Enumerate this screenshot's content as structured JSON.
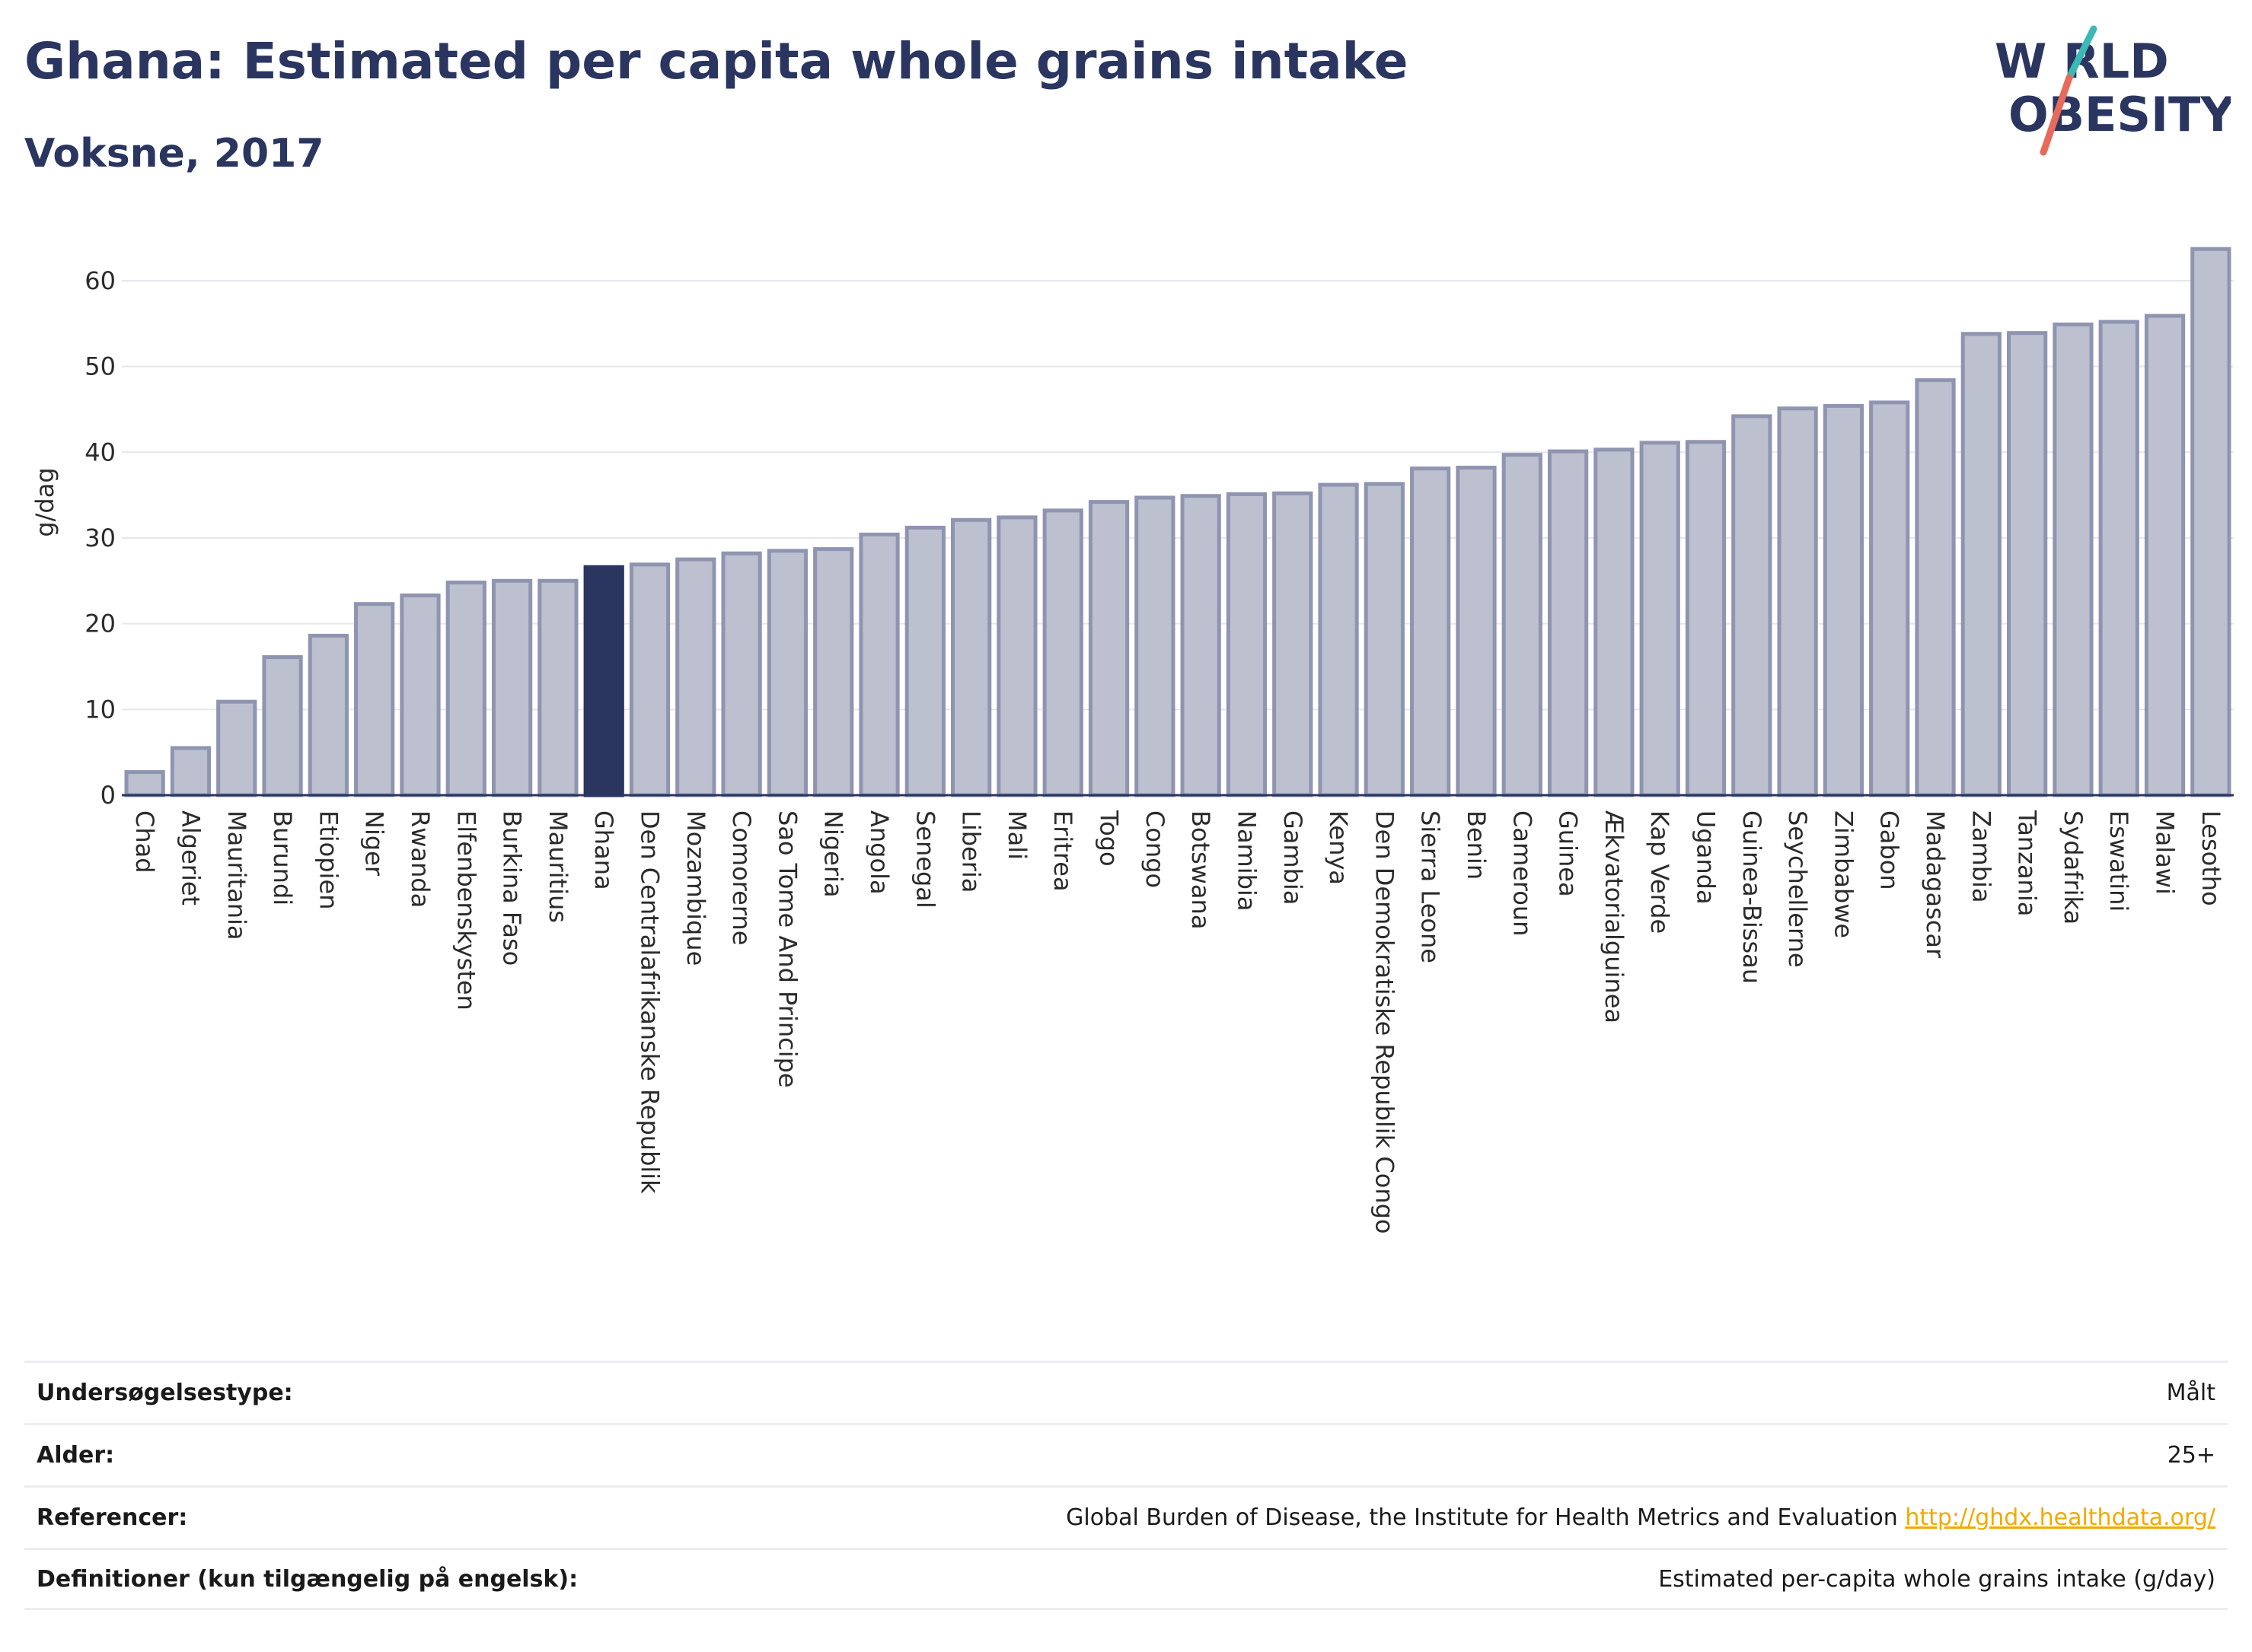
{
  "title": "Ghana: Estimated per capita whole grains intake",
  "subtitle": "Voksne, 2017",
  "logo": {
    "line1": "W RLD",
    "line2": "OBESITY",
    "colors": {
      "text": "#2a3560",
      "slash_red": "#e86a5a",
      "slash_teal": "#3cb8b5"
    }
  },
  "colors": {
    "bar": "#bcc0cf",
    "bar_border": "#8f95b0",
    "highlight": "#2a3560",
    "grid": "#e6e7ee",
    "axis": "#2a3560"
  },
  "chart_data": {
    "type": "bar",
    "ylabel": "g/dag",
    "ylim": [
      0,
      67
    ],
    "yticks": [
      0,
      10,
      20,
      30,
      40,
      50,
      60
    ],
    "highlight": "Ghana",
    "categories": [
      "Chad",
      "Algeriet",
      "Mauritania",
      "Burundi",
      "Etiopien",
      "Niger",
      "Rwanda",
      "Elfenbenskysten",
      "Burkina Faso",
      "Mauritius",
      "Ghana",
      "Den Centralafrikanske Republik",
      "Mozambique",
      "Comorerne",
      "Sao Tome And Principe",
      "Nigeria",
      "Angola",
      "Senegal",
      "Liberia",
      "Mali",
      "Eritrea",
      "Togo",
      "Congo",
      "Botswana",
      "Namibia",
      "Gambia",
      "Kenya",
      "Den Demokratiske Republik Congo",
      "Sierra Leone",
      "Benin",
      "Cameroun",
      "Guinea",
      "Ækvatorialguinea",
      "Kap Verde",
      "Uganda",
      "Guinea-Bissau",
      "Seychellerne",
      "Zimbabwe",
      "Gabon",
      "Madagascar",
      "Zambia",
      "Tanzania",
      "Sydafrika",
      "Eswatini",
      "Malawi",
      "Lesotho"
    ],
    "values": [
      2.7,
      5.5,
      10.9,
      16.1,
      18.6,
      22.3,
      23.3,
      24.8,
      25.0,
      25.0,
      26.6,
      26.9,
      27.5,
      28.2,
      28.5,
      28.7,
      30.4,
      31.2,
      32.1,
      32.4,
      33.2,
      34.2,
      34.7,
      34.9,
      35.1,
      35.2,
      36.2,
      36.3,
      38.1,
      38.2,
      39.7,
      40.1,
      40.3,
      41.1,
      41.2,
      44.2,
      45.1,
      45.4,
      45.8,
      48.4,
      53.8,
      53.9,
      54.9,
      55.2,
      55.9,
      63.7
    ]
  },
  "info_table": [
    {
      "label": "Undersøgelsestype:",
      "value": "Målt"
    },
    {
      "label": "Alder:",
      "value": "25+"
    },
    {
      "label": "Referencer:",
      "value": "Global Burden of Disease, the Institute for Health Metrics and Evaluation",
      "link": "http://ghdx.healthdata.org/"
    },
    {
      "label": "Definitioner (kun tilgængelig på engelsk):",
      "value": "Estimated per-capita whole grains intake (g/day)"
    }
  ]
}
